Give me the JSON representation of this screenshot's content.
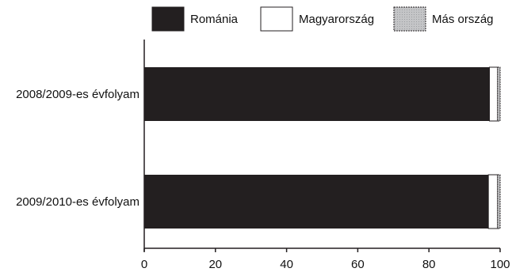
{
  "chart_data": {
    "type": "bar",
    "orientation": "horizontal",
    "stacked": true,
    "categories": [
      "2008/2009-es évfolyam",
      "2009/2010-es évfolyam"
    ],
    "series": [
      {
        "name": "Románia",
        "values": [
          97.0,
          96.7
        ],
        "color": "#231f20"
      },
      {
        "name": "Magyarország",
        "values": [
          2.3,
          2.6
        ],
        "color": "#ffffff"
      },
      {
        "name": "Más ország",
        "values": [
          0.7,
          0.7
        ],
        "color": "#bcbec0"
      }
    ],
    "xlim": [
      0,
      100
    ],
    "xticks": [
      0,
      20,
      40,
      60,
      80,
      100
    ],
    "grid": false,
    "legend_position": "top"
  }
}
